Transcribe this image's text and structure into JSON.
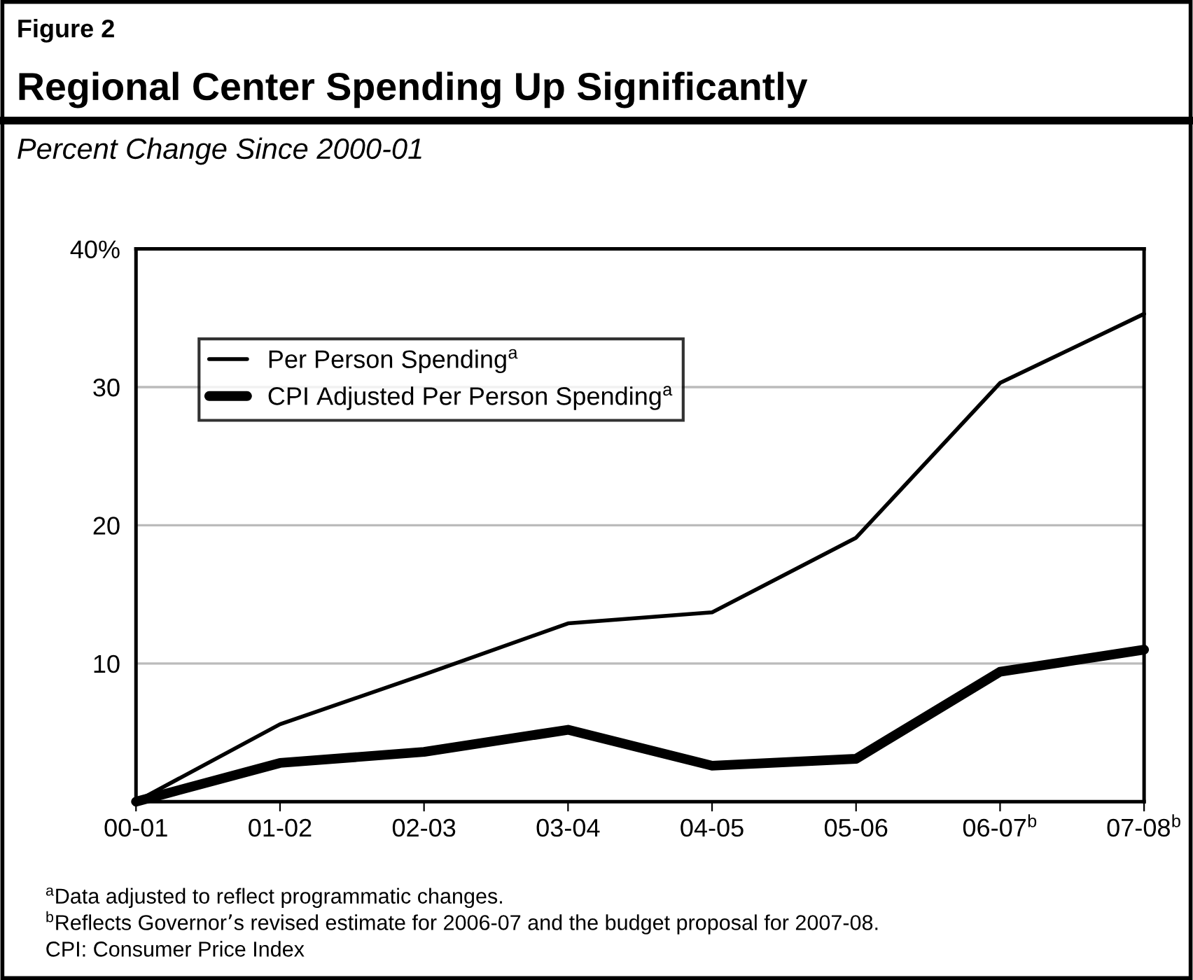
{
  "chart_data": {
    "type": "line",
    "title": "Regional Center Spending Up Significantly",
    "subtitle": "Percent Change Since 2000-01",
    "annotations": [
      "Figure 2",
      "$^{a}$Data adjusted to reflect programmatic changes.",
      "$^{b}$Reflects Governor’s revised estimate for 2006-07 and the budget proposal for 2007-08.",
      "CPI: Consumer Price Index"
    ],
    "categories": [
      "00-01",
      "01-02",
      "02-03",
      "03-04",
      "04-05",
      "05-06",
      "06-07$^{b}$",
      "07-08$^{b}$"
    ],
    "series": [
      {
        "name": "Per Person Spending$^{a}$",
        "color": "#000000",
        "values": [
          0,
          5.6,
          9.2,
          12.9,
          13.7,
          19.1,
          30.3,
          35.3
        ]
      },
      {
        "name": "CPI Adjusted Per Person Spending$^{a}$",
        "color": "#000000",
        "values": [
          0,
          2.8,
          3.6,
          5.2,
          2.6,
          3.1,
          9.4,
          11.0
        ]
      }
    ],
    "ylim": [
      0,
      40
    ],
    "yticks": [
      {
        "value": 0,
        "label": null
      },
      10,
      20,
      30,
      {
        "value": 40,
        "label": "40%"
      }
    ],
    "grid": "y",
    "legend": "top left",
    "marker": "none",
    "line_style": "solid"
  }
}
